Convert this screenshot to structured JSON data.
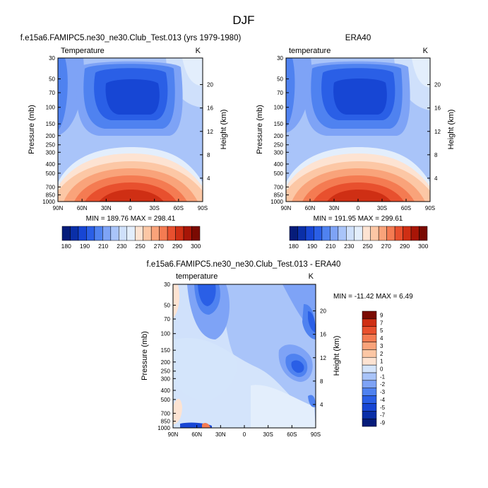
{
  "figure": {
    "title": "DJF"
  },
  "colors": {
    "abs_palette": [
      "#061c7a",
      "#0a2fa8",
      "#1746d4",
      "#2a5fe6",
      "#4f82f0",
      "#7ea3f6",
      "#a9c4f9",
      "#cfe0fb",
      "#e3eefc",
      "#fde3d2",
      "#fcc7a5",
      "#f9a37a",
      "#f47b52",
      "#e8502e",
      "#cf2f14",
      "#a81507",
      "#7a0a02"
    ],
    "diff_palette": [
      "#061c7a",
      "#0a2fa8",
      "#1746d4",
      "#2a5fe6",
      "#4f82f0",
      "#7ea3f6",
      "#a9c4f9",
      "#d4e4fb",
      "#fde3d2",
      "#fcc7a5",
      "#f9a37a",
      "#f47b52",
      "#e8502e",
      "#cf2f14",
      "#7a0a02"
    ]
  },
  "chart_data": [
    {
      "type": "heatmap",
      "title": "f.e15a6.FAMIPC5.ne30_ne30.Club_Test.013 (yrs 1979-1980)",
      "field_label": "Temperature",
      "units": "K",
      "xlabel": "",
      "ylabel": "Pressure (mb)",
      "ylabel_right": "Height (km)",
      "x_ticks": [
        "90N",
        "60N",
        "30N",
        "0",
        "30S",
        "60S",
        "90S"
      ],
      "y_ticks": [
        "30",
        "50",
        "70",
        "100",
        "150",
        "200",
        "250",
        "300",
        "400",
        "500",
        "700",
        "850",
        "1000"
      ],
      "y_ticks_right": [
        "20",
        "16",
        "12",
        "8",
        "4"
      ],
      "stats": "MIN = 189.76   MAX = 298.41",
      "colorbar_labels": [
        "180",
        "190",
        "210",
        "230",
        "250",
        "270",
        "290",
        "300"
      ],
      "ylog": true
    },
    {
      "type": "heatmap",
      "title": "ERA40",
      "field_label": "temperature",
      "units": "K",
      "xlabel": "",
      "ylabel": "Pressure (mb)",
      "ylabel_right": "Height (km)",
      "x_ticks": [
        "90N",
        "60N",
        "30N",
        "0",
        "30S",
        "60S",
        "90S"
      ],
      "y_ticks": [
        "30",
        "50",
        "70",
        "100",
        "150",
        "200",
        "250",
        "300",
        "400",
        "500",
        "700",
        "850",
        "1000"
      ],
      "y_ticks_right": [
        "20",
        "16",
        "12",
        "8",
        "4"
      ],
      "stats": "MIN = 191.95   MAX = 299.61",
      "colorbar_labels": [
        "180",
        "190",
        "210",
        "230",
        "250",
        "270",
        "290",
        "300"
      ],
      "ylog": true
    },
    {
      "type": "heatmap",
      "title": "f.e15a6.FAMIPC5.ne30_ne30.Club_Test.013 - ERA40",
      "field_label": "temperature",
      "units": "K",
      "xlabel": "",
      "ylabel": "Pressure (mb)",
      "ylabel_right": "Height (km)",
      "x_ticks": [
        "90N",
        "60N",
        "30N",
        "0",
        "30S",
        "60S",
        "90S"
      ],
      "y_ticks": [
        "30",
        "50",
        "70",
        "100",
        "150",
        "200",
        "250",
        "300",
        "400",
        "500",
        "700",
        "850",
        "1000"
      ],
      "y_ticks_right": [
        "20",
        "16",
        "12",
        "8",
        "4"
      ],
      "stats": "MIN = -11.42  MAX =   6.49",
      "colorbar_labels": [
        "9",
        "7",
        "5",
        "4",
        "3",
        "2",
        "1",
        "0",
        "-1",
        "-2",
        "-3",
        "-4",
        "-5",
        "-7",
        "-9"
      ],
      "ylog": true
    }
  ]
}
